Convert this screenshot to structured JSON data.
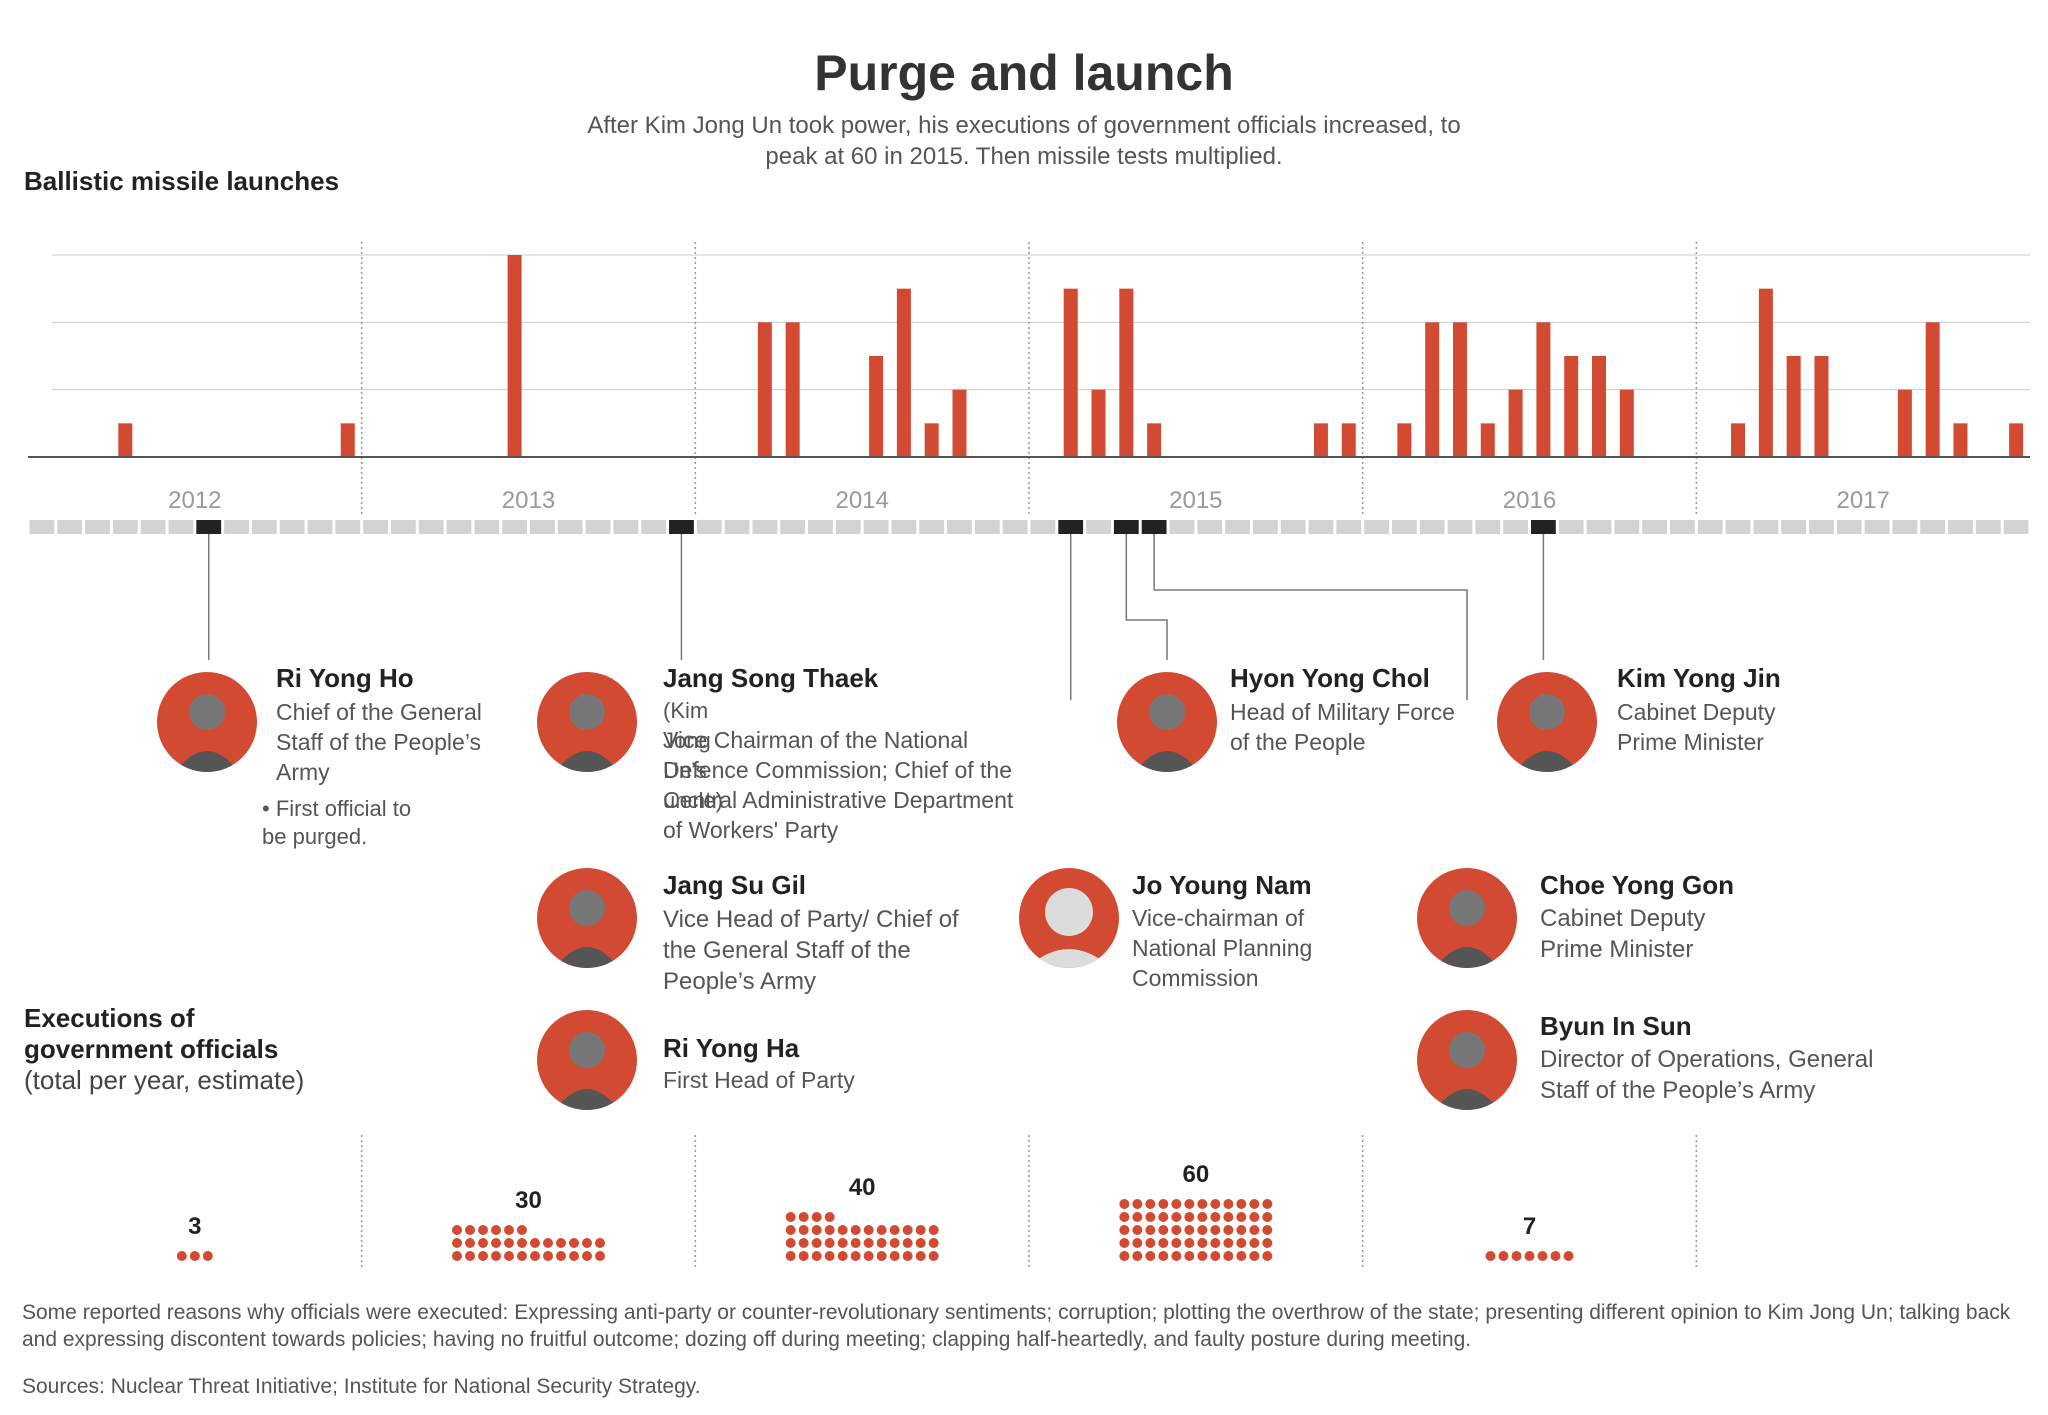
{
  "header": {
    "title": "Purge and launch",
    "subtitle": "After Kim Jong Un took power, his executions of government officials increased, to peak at 60 in 2015. Then missile tests multiplied."
  },
  "missile_section_label": "Ballistic missile launches",
  "executions_section": {
    "title": "Executions of government officials",
    "note": "(total per year, estimate)"
  },
  "colors": {
    "accent": "#d34a33",
    "timeline_cell": "#d3d3d3",
    "timeline_marker": "#222222",
    "gridline": "#cccccc"
  },
  "chart_data": [
    {
      "type": "bar",
      "title": "Ballistic missile launches",
      "xlabel": "",
      "ylabel": "",
      "years": [
        "2012",
        "2013",
        "2014",
        "2015",
        "2016",
        "2017"
      ],
      "unit": "monthly launches",
      "ylim": [
        0,
        6
      ],
      "grid": true,
      "series": [
        {
          "values": [
            0,
            0,
            0,
            1,
            0,
            0,
            0,
            0,
            0,
            0,
            0,
            1,
            0,
            0,
            0,
            0,
            0,
            6,
            0,
            0,
            0,
            0,
            0,
            0,
            0,
            0,
            4,
            4,
            0,
            0,
            3,
            5,
            1,
            2,
            0,
            0,
            0,
            5,
            2,
            5,
            1,
            0,
            0,
            0,
            0,
            0,
            1,
            1,
            0,
            1,
            4,
            4,
            1,
            2,
            4,
            3,
            3,
            2,
            0,
            0,
            0,
            1,
            5,
            3,
            3,
            0,
            0,
            2,
            4,
            1,
            0,
            1
          ]
        }
      ]
    },
    {
      "type": "dot",
      "title": "Executions of government officials",
      "categories": [
        "2012",
        "2013",
        "2014",
        "2015",
        "2016",
        "2017"
      ],
      "values": [
        3,
        30,
        40,
        60,
        7,
        null
      ],
      "labels": [
        "3",
        "30",
        "40",
        "60",
        "7",
        ""
      ]
    }
  ],
  "timeline": {
    "markers": [
      6,
      23,
      37,
      39,
      40,
      54
    ]
  },
  "people": [
    {
      "name": "Ri Yong Ho",
      "role": "Chief of the General Staff of the People’s Army",
      "note": "First official to be purged."
    },
    {
      "name": "Jang Song Thaek",
      "relation": "(Kim Jong Un’s uncle)",
      "role": "Vice Chairman of the National Defence Commission; Chief of the Central Administrative Department of Workers' Party"
    },
    {
      "name": "Jang Su Gil",
      "role": "Vice Head of Party/ Chief of the General Staff of the People’s Army"
    },
    {
      "name": "Ri Yong Ha",
      "role": "First Head of Party"
    },
    {
      "name": "Jo Young Nam",
      "role": "Vice-chairman of National Planning Commission"
    },
    {
      "name": "Hyon Yong Chol",
      "role": "Head of Military Force of the People"
    },
    {
      "name": "Kim Yong Jin",
      "role": "Cabinet Deputy Prime Minister"
    },
    {
      "name": "Choe Yong Gon",
      "role": "Cabinet Deputy Prime Minister"
    },
    {
      "name": "Byun In Sun",
      "role": "Director of Operations, General Staff of the People’s Army"
    }
  ],
  "footer": {
    "reasons": "Some reported reasons why officials were executed: Expressing anti-party or counter-revolutionary sentiments; corruption; plotting the overthrow of the state; presenting different opinion to Kim Jong Un; talking back and expressing discontent towards policies; having no fruitful outcome; dozing off during meeting; clapping half-heartedly, and faulty posture during meeting.",
    "sources": "Sources: Nuclear Threat Initiative; Institute for National Security Strategy."
  }
}
